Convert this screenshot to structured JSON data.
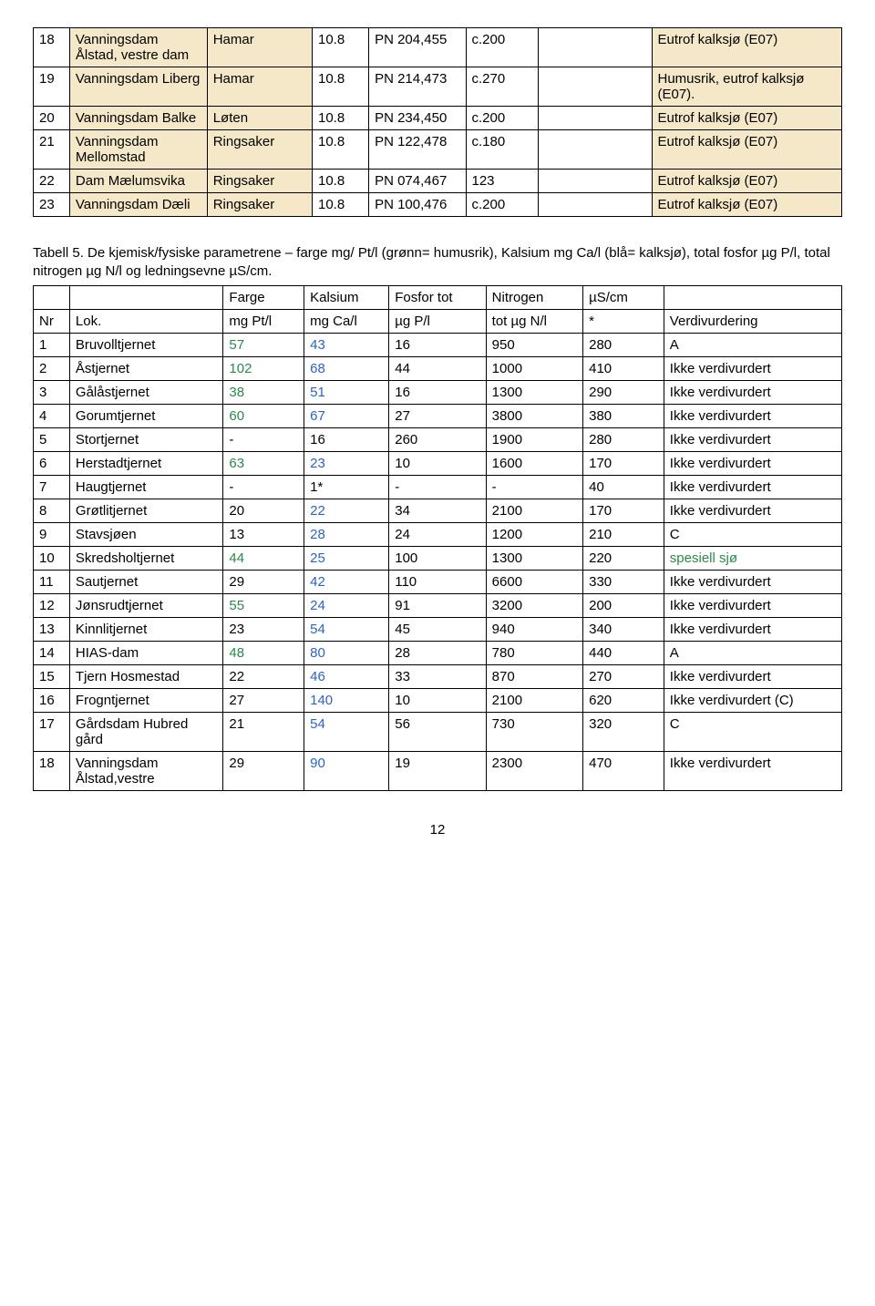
{
  "colors": {
    "green": "#2a8a4a",
    "blue": "#2a64c8",
    "black": "#000000",
    "beige": "#f4e8c8"
  },
  "table1": {
    "rows": [
      {
        "n": "18",
        "loc": "Vanningsdam Ålstad, vestre dam",
        "mun": "Hamar",
        "v": "10.8",
        "code": "PN 204,455",
        "cls": "c.200",
        "blank": "",
        "desc": "Eutrof kalksjø (E07)"
      },
      {
        "n": "19",
        "loc": "Vanningsdam Liberg",
        "mun": "Hamar",
        "v": "10.8",
        "code": "PN 214,473",
        "cls": "c.270",
        "blank": "",
        "desc": "Humusrik, eutrof kalksjø (E07)."
      },
      {
        "n": "20",
        "loc": "Vanningsdam Balke",
        "mun": "Løten",
        "v": "10.8",
        "code": "PN 234,450",
        "cls": "c.200",
        "blank": "",
        "desc": "Eutrof kalksjø (E07)"
      },
      {
        "n": "21",
        "loc": "Vanningsdam Mellomstad",
        "mun": "Ringsaker",
        "v": "10.8",
        "code": "PN 122,478",
        "cls": "c.180",
        "blank": "",
        "desc": "Eutrof kalksjø (E07)"
      },
      {
        "n": "22",
        "loc": "Dam Mælumsvika",
        "mun": "Ringsaker",
        "v": "10.8",
        "code": "PN 074,467",
        "cls": "123",
        "blank": "",
        "desc": "Eutrof kalksjø (E07)"
      },
      {
        "n": "23",
        "loc": "Vanningsdam Dæli",
        "mun": "Ringsaker",
        "v": "10.8",
        "code": "PN 100,476",
        "cls": "c.200",
        "blank": "",
        "desc": "Eutrof kalksjø (E07)"
      }
    ]
  },
  "caption": "Tabell 5. De kjemisk/fysiske parametrene – farge mg/ Pt/l (grønn= humusrik), Kalsium mg Ca/l (blå= kalksjø), total fosfor µg P/l, total nitrogen µg N/l og ledningsevne µS/cm.",
  "table2": {
    "header1": {
      "nr": "",
      "lok": "",
      "farge": "Farge",
      "kalsium": "Kalsium",
      "fosfor": "Fosfor tot",
      "nitrogen": "Nitrogen",
      "us": "µS/cm",
      "verd": ""
    },
    "header2": {
      "nr": "Nr",
      "lok": "Lok.",
      "farge": "mg Pt/l",
      "kalsium": "mg Ca/l",
      "fosfor": "µg P/l",
      "nitrogen": "tot µg N/l",
      "us": "*",
      "verd": "Verdivurdering"
    },
    "rows": [
      {
        "n": "1",
        "lok": "Bruvolltjernet",
        "farge": {
          "v": "57",
          "c": "green"
        },
        "ca": {
          "v": "43",
          "c": "blue"
        },
        "p": "16",
        "nit": "950",
        "us": "280",
        "verd": {
          "v": "A",
          "c": "black"
        }
      },
      {
        "n": "2",
        "lok": "Åstjernet",
        "farge": {
          "v": "102",
          "c": "green"
        },
        "ca": {
          "v": "68",
          "c": "blue"
        },
        "p": "44",
        "nit": "1000",
        "us": "410",
        "verd": {
          "v": "Ikke verdivurdert",
          "c": "black"
        }
      },
      {
        "n": "3",
        "lok": "Gålåstjernet",
        "farge": {
          "v": "38",
          "c": "green"
        },
        "ca": {
          "v": "51",
          "c": "blue"
        },
        "p": "16",
        "nit": "1300",
        "us": "290",
        "verd": {
          "v": "Ikke verdivurdert",
          "c": "black"
        }
      },
      {
        "n": "4",
        "lok": "Gorumtjernet",
        "farge": {
          "v": "60",
          "c": "green"
        },
        "ca": {
          "v": "67",
          "c": "blue"
        },
        "p": "27",
        "nit": "3800",
        "us": "380",
        "verd": {
          "v": "Ikke verdivurdert",
          "c": "black"
        }
      },
      {
        "n": "5",
        "lok": "Stortjernet",
        "farge": {
          "v": "-",
          "c": "black"
        },
        "ca": {
          "v": "16",
          "c": "black"
        },
        "p": "260",
        "nit": "1900",
        "us": "280",
        "verd": {
          "v": "Ikke verdivurdert",
          "c": "black"
        }
      },
      {
        "n": "6",
        "lok": "Herstadtjernet",
        "farge": {
          "v": "63",
          "c": "green"
        },
        "ca": {
          "v": "23",
          "c": "blue"
        },
        "p": "10",
        "nit": "1600",
        "us": "170",
        "verd": {
          "v": "Ikke verdivurdert",
          "c": "black"
        }
      },
      {
        "n": "7",
        "lok": "Haugtjernet",
        "farge": {
          "v": "-",
          "c": "black"
        },
        "ca": {
          "v": "1*",
          "c": "black"
        },
        "p": "-",
        "nit": "-",
        "us": "40",
        "verd": {
          "v": "Ikke verdivurdert",
          "c": "black"
        }
      },
      {
        "n": "8",
        "lok": "Grøtlitjernet",
        "farge": {
          "v": "20",
          "c": "black"
        },
        "ca": {
          "v": "22",
          "c": "blue"
        },
        "p": "34",
        "nit": "2100",
        "us": "170",
        "verd": {
          "v": "Ikke verdivurdert",
          "c": "black"
        }
      },
      {
        "n": "9",
        "lok": "Stavsjøen",
        "farge": {
          "v": "13",
          "c": "black"
        },
        "ca": {
          "v": "28",
          "c": "blue"
        },
        "p": "24",
        "nit": "1200",
        "us": "210",
        "verd": {
          "v": "C",
          "c": "black"
        }
      },
      {
        "n": "10",
        "lok": "Skredsholtjernet",
        "farge": {
          "v": "44",
          "c": "green"
        },
        "ca": {
          "v": "25",
          "c": "blue"
        },
        "p": "100",
        "nit": "1300",
        "us": "220",
        "verd": {
          "v": "spesiell sjø",
          "c": "green"
        }
      },
      {
        "n": "11",
        "lok": "Sautjernet",
        "farge": {
          "v": "29",
          "c": "black"
        },
        "ca": {
          "v": "42",
          "c": "blue"
        },
        "p": "110",
        "nit": "6600",
        "us": "330",
        "verd": {
          "v": "Ikke verdivurdert",
          "c": "black"
        }
      },
      {
        "n": "12",
        "lok": "Jønsrudtjernet",
        "farge": {
          "v": "55",
          "c": "green"
        },
        "ca": {
          "v": "24",
          "c": "blue"
        },
        "p": "91",
        "nit": "3200",
        "us": "200",
        "verd": {
          "v": "Ikke verdivurdert",
          "c": "black"
        }
      },
      {
        "n": "13",
        "lok": "Kinnlitjernet",
        "farge": {
          "v": "23",
          "c": "black"
        },
        "ca": {
          "v": "54",
          "c": "blue"
        },
        "p": "45",
        "nit": "940",
        "us": "340",
        "verd": {
          "v": "Ikke verdivurdert",
          "c": "black"
        }
      },
      {
        "n": "14",
        "lok": "HIAS-dam",
        "farge": {
          "v": "48",
          "c": "green"
        },
        "ca": {
          "v": "80",
          "c": "blue"
        },
        "p": "28",
        "nit": "780",
        "us": "440",
        "verd": {
          "v": "A",
          "c": "black"
        }
      },
      {
        "n": "15",
        "lok": "Tjern Hosmestad",
        "farge": {
          "v": "22",
          "c": "black"
        },
        "ca": {
          "v": "46",
          "c": "blue"
        },
        "p": "33",
        "nit": "870",
        "us": "270",
        "verd": {
          "v": "Ikke verdivurdert",
          "c": "black"
        }
      },
      {
        "n": "16",
        "lok": "Frogntjernet",
        "farge": {
          "v": "27",
          "c": "black"
        },
        "ca": {
          "v": "140",
          "c": "blue"
        },
        "p": "10",
        "nit": "2100",
        "us": "620",
        "verd": {
          "v": "Ikke verdivurdert (C)",
          "c": "black"
        }
      },
      {
        "n": "17",
        "lok": "Gårdsdam Hubred gård",
        "farge": {
          "v": "21",
          "c": "black"
        },
        "ca": {
          "v": "54",
          "c": "blue"
        },
        "p": "56",
        "nit": "730",
        "us": "320",
        "verd": {
          "v": "C",
          "c": "black"
        }
      },
      {
        "n": "18",
        "lok": "Vanningsdam Ålstad,vestre",
        "farge": {
          "v": "29",
          "c": "black"
        },
        "ca": {
          "v": "90",
          "c": "blue"
        },
        "p": "19",
        "nit": "2300",
        "us": "470",
        "verd": {
          "v": "Ikke verdivurdert",
          "c": "black"
        }
      }
    ]
  },
  "pagenum": "12"
}
